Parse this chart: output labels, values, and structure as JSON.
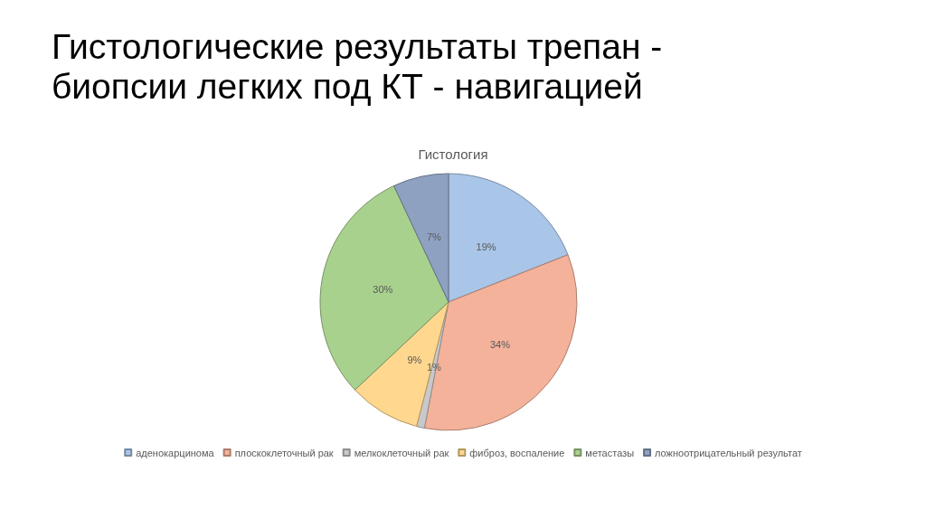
{
  "chart_data": {
    "type": "pie",
    "title": "Гистологические результаты трепан - биопсии легких под КТ - навигацией",
    "subtitle": "Гистология",
    "categories": [
      "аденокарцинома",
      "плоскоклеточный рак",
      "мелкоклеточный рак",
      "фиброз, воспаление",
      "метастазы",
      "ложноотрицательный результат"
    ],
    "values": [
      19,
      34,
      1,
      9,
      30,
      7
    ],
    "value_labels": [
      "19%",
      "34%",
      "1%",
      "9%",
      "30%",
      "7%"
    ],
    "colors": [
      "#a9c5e8",
      "#f4b29b",
      "#c9c9c9",
      "#ffd78e",
      "#a9d18e",
      "#8fa1c1"
    ],
    "legend": "bottom"
  }
}
